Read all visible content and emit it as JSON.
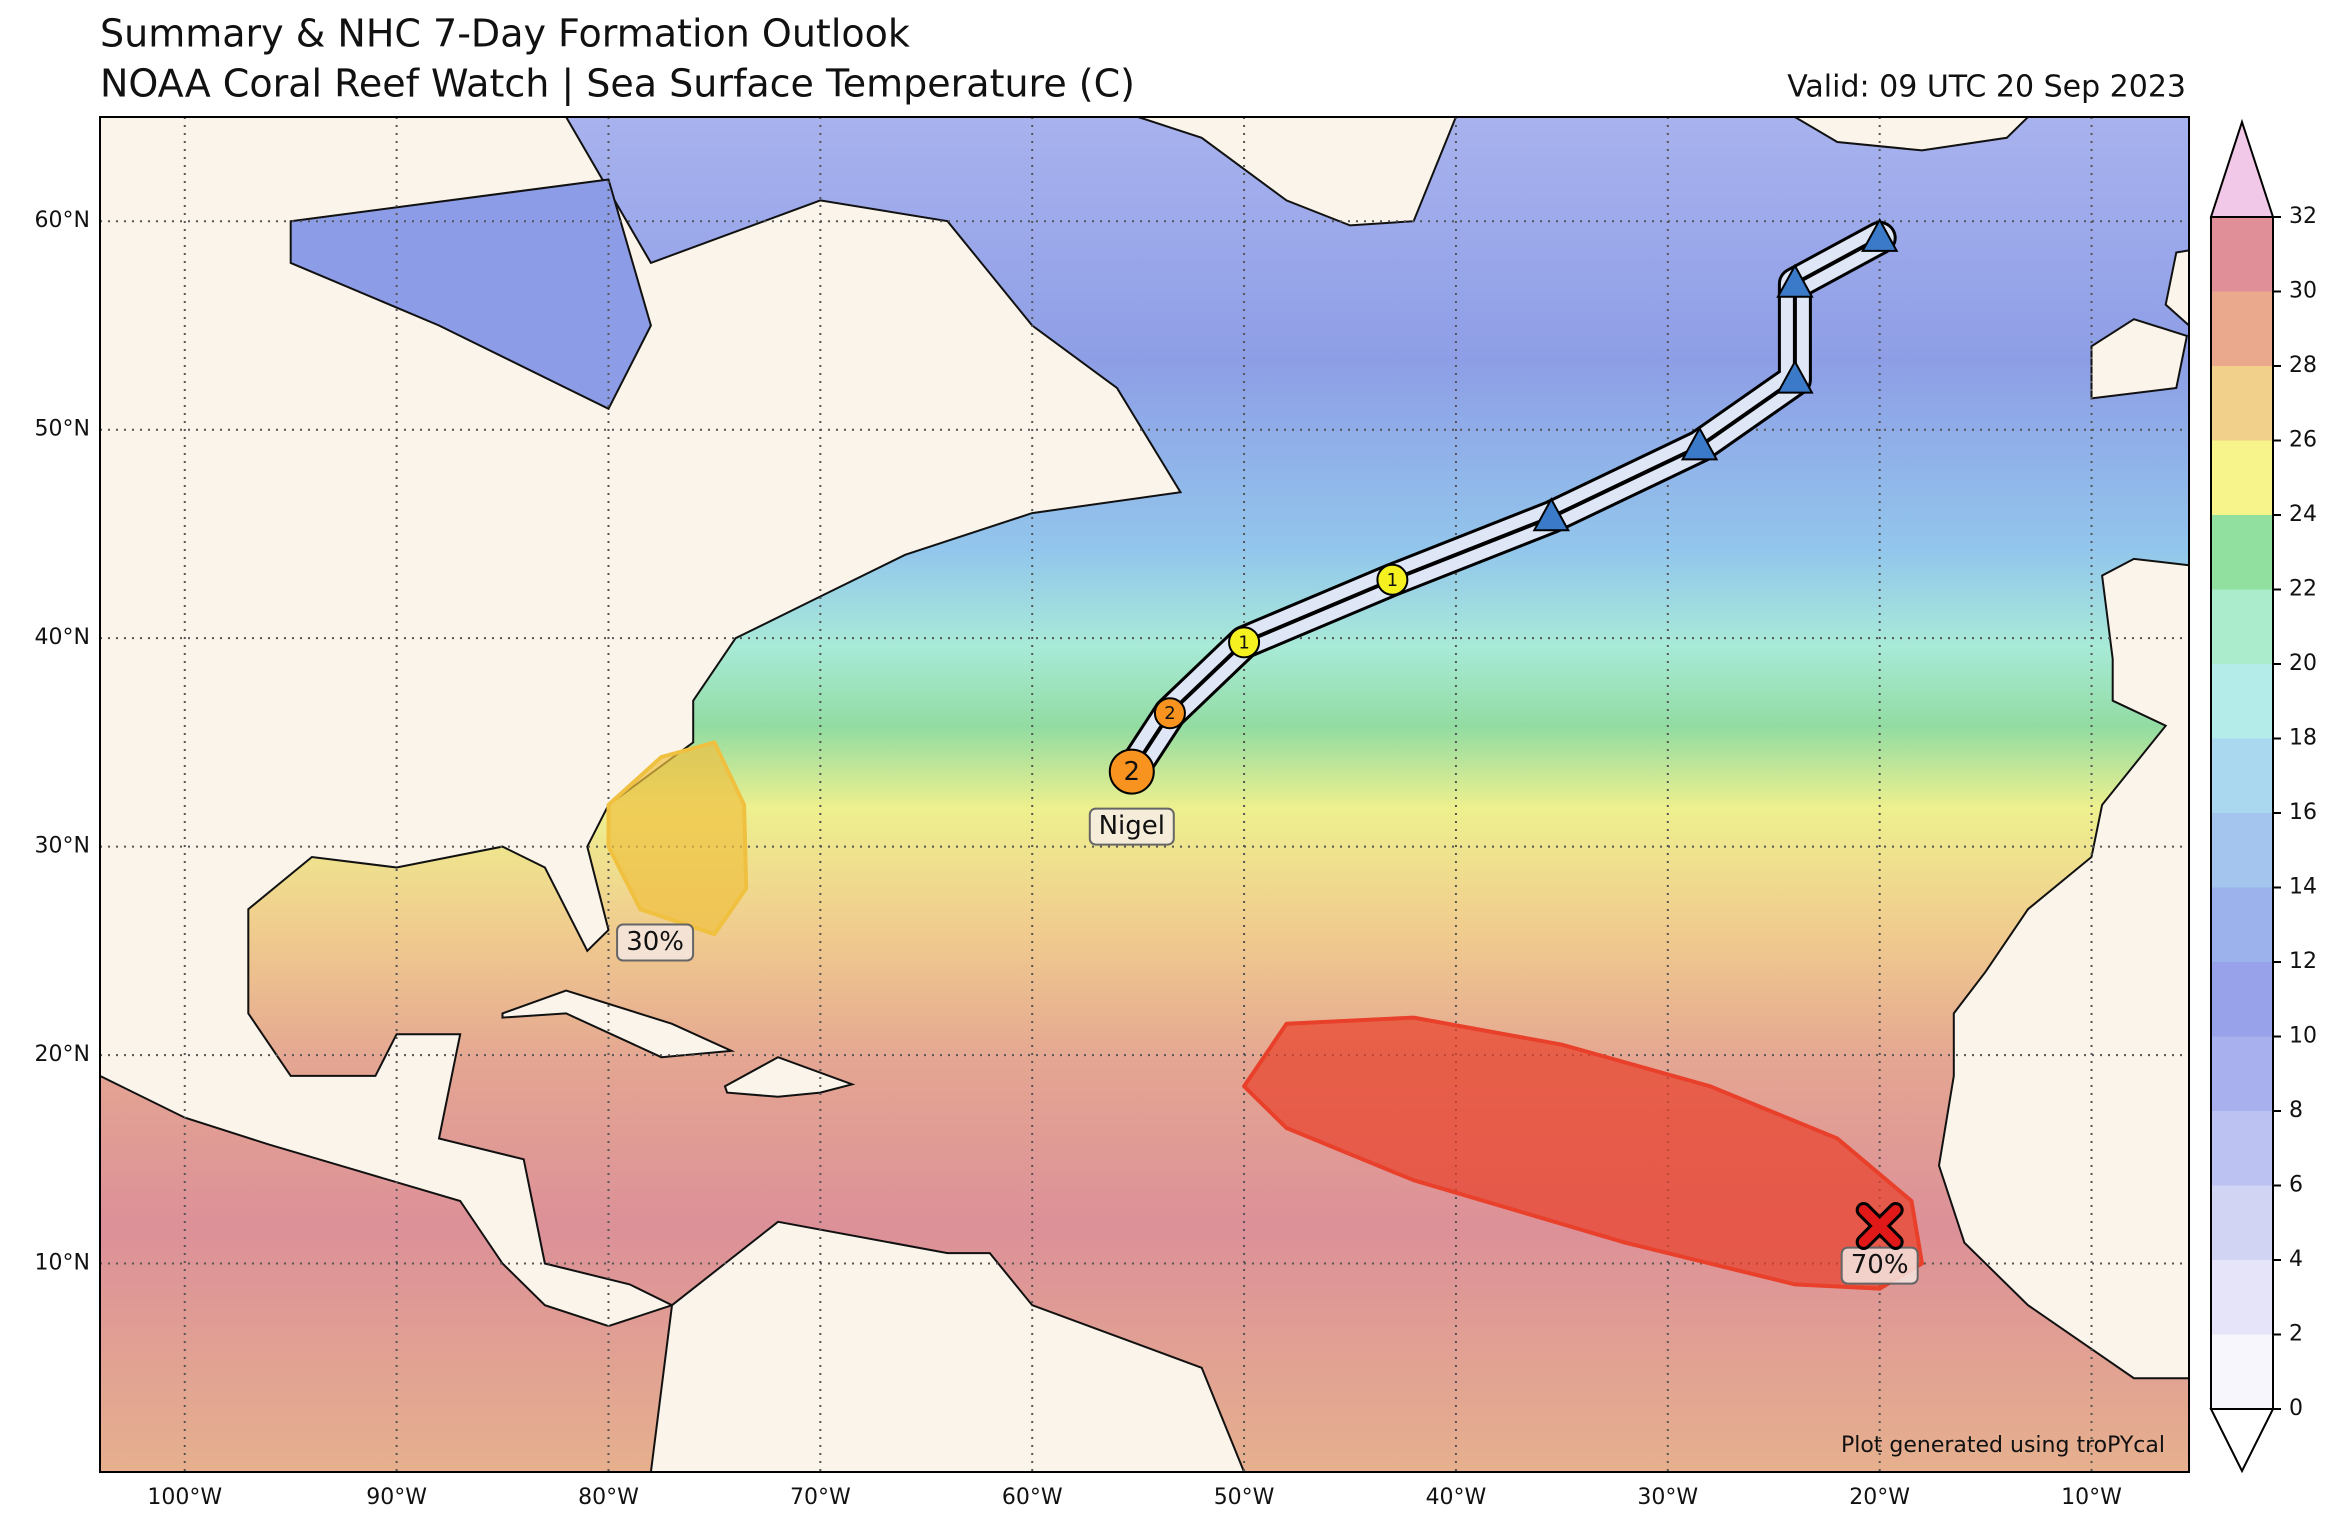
{
  "title": "Summary & NHC 7-Day Formation Outlook",
  "subtitle": "NOAA Coral Reef Watch | Sea Surface Temperature (C)",
  "valid": "Valid: 09 UTC 20 Sep 2023",
  "credit": "Plot generated using troPYcal",
  "map": {
    "lon_range": [
      -104,
      -5.4
    ],
    "lat_range": [
      0,
      65
    ],
    "lon_ticks": [
      {
        "value": -100,
        "label": "100°W"
      },
      {
        "value": -90,
        "label": "90°W"
      },
      {
        "value": -80,
        "label": "80°W"
      },
      {
        "value": -70,
        "label": "70°W"
      },
      {
        "value": -60,
        "label": "60°W"
      },
      {
        "value": -50,
        "label": "50°W"
      },
      {
        "value": -40,
        "label": "40°W"
      },
      {
        "value": -30,
        "label": "30°W"
      },
      {
        "value": -20,
        "label": "20°W"
      },
      {
        "value": -10,
        "label": "10°W"
      }
    ],
    "lat_ticks": [
      {
        "value": 10,
        "label": "10°N"
      },
      {
        "value": 20,
        "label": "20°N"
      },
      {
        "value": 30,
        "label": "30°N"
      },
      {
        "value": 40,
        "label": "40°N"
      },
      {
        "value": 50,
        "label": "50°N"
      },
      {
        "value": 60,
        "label": "60°N"
      }
    ]
  },
  "colorbar": {
    "range": [
      0,
      32
    ],
    "ticks": [
      0,
      2,
      4,
      6,
      8,
      10,
      12,
      14,
      16,
      18,
      20,
      22,
      24,
      26,
      28,
      30,
      32
    ],
    "colors": [
      "#f8f6fd",
      "#e6e4f8",
      "#d2d4f4",
      "#bcc2f1",
      "#a8b0ee",
      "#98a2ea",
      "#9cb2ec",
      "#a4c6ee",
      "#aad8ee",
      "#b4ecea",
      "#aaeccc",
      "#92e0a0",
      "#f8f48c",
      "#f0d08a",
      "#eaa88c",
      "#e08e98"
    ]
  },
  "storm": {
    "name": "Nigel",
    "points": [
      {
        "lon": -55.3,
        "lat": 33.6,
        "label": "2",
        "kind": "circle",
        "color": "#f7931e"
      },
      {
        "lon": -53.5,
        "lat": 36.4,
        "label": "2",
        "kind": "circle",
        "color": "#f7931e"
      },
      {
        "lon": -50.0,
        "lat": 39.8,
        "label": "1",
        "kind": "circle",
        "color": "#f5f020"
      },
      {
        "lon": -43.0,
        "lat": 42.8,
        "label": "1",
        "kind": "circle",
        "color": "#f5f020"
      },
      {
        "lon": -35.5,
        "lat": 45.8,
        "kind": "triangle",
        "color": "#3a7ac8"
      },
      {
        "lon": -28.5,
        "lat": 49.2,
        "kind": "triangle",
        "color": "#3a7ac8"
      },
      {
        "lon": -24.0,
        "lat": 52.4,
        "kind": "triangle",
        "color": "#3a7ac8"
      },
      {
        "lon": -24.0,
        "lat": 57.0,
        "kind": "triangle",
        "color": "#3a7ac8"
      },
      {
        "lon": -20.0,
        "lat": 59.2,
        "kind": "triangle",
        "color": "#3a7ac8"
      }
    ]
  },
  "outlook_areas": [
    {
      "label": "30%",
      "color": "#f0c040"
    },
    {
      "label": "70%",
      "color": "#e8402a"
    }
  ]
}
